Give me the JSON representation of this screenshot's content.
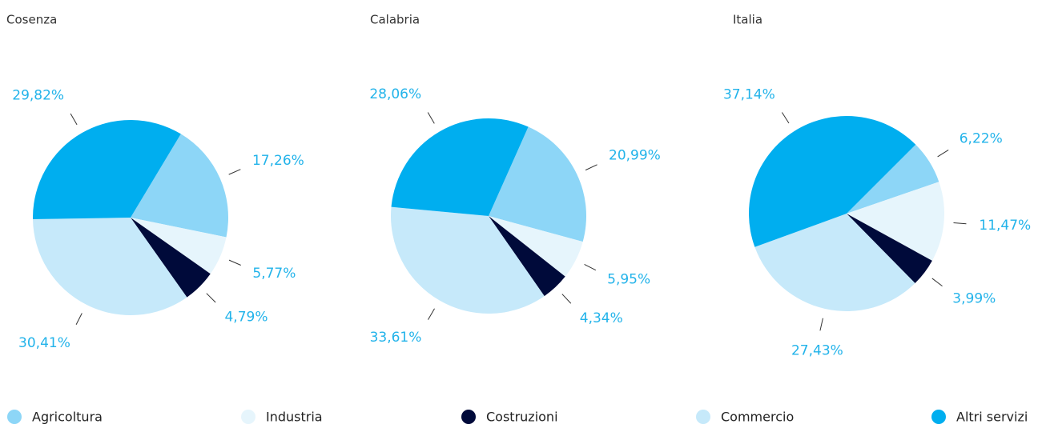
{
  "chart_data": [
    {
      "type": "pie",
      "title": "Cosenza",
      "categories": [
        "Agricoltura",
        "Industria",
        "Costruzioni",
        "Commercio",
        "Altri servizi"
      ],
      "values": [
        17.26,
        5.77,
        4.79,
        30.41,
        29.82
      ],
      "value_labels": [
        "17,26%",
        "5,77%",
        "4,79%",
        "30,41%",
        "29,82%"
      ],
      "colors": [
        "#8dd6f7",
        "#e6f5fc",
        "#000a3a",
        "#c6e9fa",
        "#00aeef"
      ]
    },
    {
      "type": "pie",
      "title": "Calabria",
      "categories": [
        "Agricoltura",
        "Industria",
        "Costruzioni",
        "Commercio",
        "Altri servizi"
      ],
      "values": [
        20.99,
        5.95,
        4.34,
        33.61,
        28.06
      ],
      "value_labels": [
        "20,99%",
        "5,95%",
        "4,34%",
        "33,61%",
        "28,06%"
      ],
      "colors": [
        "#8dd6f7",
        "#e6f5fc",
        "#000a3a",
        "#c6e9fa",
        "#00aeef"
      ]
    },
    {
      "type": "pie",
      "title": "Italia",
      "categories": [
        "Agricoltura",
        "Industria",
        "Costruzioni",
        "Commercio",
        "Altri servizi"
      ],
      "values": [
        6.22,
        11.47,
        3.99,
        27.43,
        37.14
      ],
      "value_labels": [
        "6,22%",
        "11,47%",
        "3,99%",
        "27,43%",
        "37,14%"
      ],
      "colors": [
        "#8dd6f7",
        "#e6f5fc",
        "#000a3a",
        "#c6e9fa",
        "#00aeef"
      ]
    }
  ]
}
